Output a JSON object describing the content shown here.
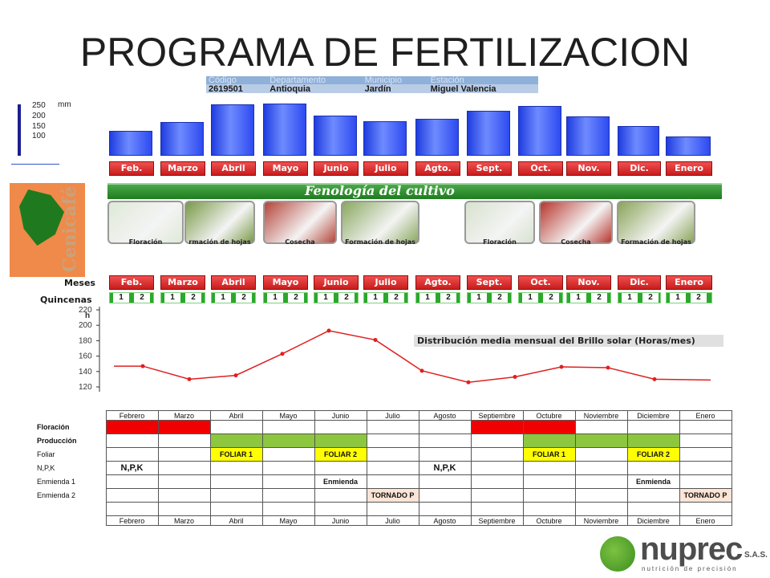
{
  "title": "PROGRAMA DE FERTILIZACION",
  "station": {
    "headers": [
      "Código",
      "Departamento",
      "Municipio",
      "Estación"
    ],
    "values": [
      "2619501",
      "Antioquia",
      "Jardín",
      "Miguel Valencia"
    ]
  },
  "rain_axis": {
    "unit": "mm",
    "ticks": [
      "250",
      "200",
      "150",
      "100"
    ]
  },
  "months_short": [
    "Feb.",
    "Marzo",
    "Abril",
    "Mayo",
    "Junio",
    "Julio",
    "Agto.",
    "Sept.",
    "Oct.",
    "Nov.",
    "Dic.",
    "Enero"
  ],
  "rainfall_mm": [
    112,
    150,
    228,
    232,
    180,
    155,
    166,
    200,
    220,
    175,
    132,
    86
  ],
  "fenologia": {
    "title": "Fenología del cultivo",
    "photos_labels": [
      "Floración",
      "rmación de hojas",
      "Cosecha",
      "Formación de hojas",
      "Floración",
      "Cosecha",
      "Formación de hojas"
    ],
    "side_word": "Cenicafé"
  },
  "meses_label": "Meses",
  "quincenas_label": "Quincenas",
  "quincena_numbers": [
    "1",
    "2"
  ],
  "sunshine": {
    "unit": "h",
    "legend": "Distribución media mensual del Brillo solar (Horas/mes)",
    "ticks": [
      "220",
      "200",
      "180",
      "160",
      "140",
      "120"
    ],
    "values": [
      147,
      130,
      135,
      163,
      193,
      181,
      141,
      126,
      133,
      146,
      145,
      130
    ]
  },
  "program": {
    "months": [
      "Febrero",
      "Marzo",
      "Abril",
      "Mayo",
      "Junio",
      "Julio",
      "Agosto",
      "Septiembre",
      "Octubre",
      "Noviembre",
      "Diciembre",
      "Enero"
    ],
    "rows": [
      {
        "label": "Floración",
        "bold": true,
        "cells": [
          "red",
          "red",
          "",
          "",
          "",
          "",
          "",
          "red",
          "red",
          "",
          "",
          ""
        ],
        "texts": [
          "",
          "",
          "",
          "",
          "",
          "",
          "",
          "",
          "",
          "",
          "",
          ""
        ]
      },
      {
        "label": "Producción",
        "bold": true,
        "cells": [
          "",
          "",
          "green",
          "green",
          "green",
          "",
          "",
          "",
          "green",
          "green",
          "green",
          ""
        ],
        "texts": [
          "",
          "",
          "",
          "",
          "",
          "",
          "",
          "",
          "",
          "",
          "",
          ""
        ]
      },
      {
        "label": "Foliar",
        "bold": false,
        "cells": [
          "",
          "",
          "yellow",
          "",
          "yellow",
          "",
          "",
          "",
          "yellow",
          "",
          "yellow",
          ""
        ],
        "texts": [
          "",
          "",
          "FOLIAR 1",
          "",
          "FOLIAR 2",
          "",
          "",
          "",
          "FOLIAR 1",
          "",
          "FOLIAR 2",
          ""
        ]
      },
      {
        "label": "N,P,K",
        "bold": false,
        "cells": [
          "npk",
          "",
          "",
          "",
          "",
          "",
          "npk",
          "",
          "",
          "",
          "",
          ""
        ],
        "texts": [
          "N,P,K",
          "",
          "",
          "",
          "",
          "",
          "N,P,K",
          "",
          "",
          "",
          "",
          ""
        ]
      },
      {
        "label": "Enmienda 1",
        "bold": false,
        "cells": [
          "",
          "",
          "",
          "",
          "bold",
          "",
          "",
          "",
          "",
          "",
          "bold",
          ""
        ],
        "texts": [
          "",
          "",
          "",
          "",
          "Enmienda",
          "",
          "",
          "",
          "",
          "",
          "Enmienda",
          ""
        ]
      },
      {
        "label": "Enmienda 2",
        "bold": false,
        "cells": [
          "",
          "",
          "",
          "",
          "",
          "peach",
          "",
          "",
          "",
          "",
          "",
          "peach"
        ],
        "texts": [
          "",
          "",
          "",
          "",
          "",
          "TORNADO P",
          "",
          "",
          "",
          "",
          "",
          "TORNADO P"
        ]
      },
      {
        "label": "",
        "bold": false,
        "cells": [
          "",
          "",
          "",
          "",
          "",
          "",
          "",
          "",
          "",
          "",
          "",
          ""
        ],
        "texts": [
          "",
          "",
          "",
          "",
          "",
          "",
          "",
          "",
          "",
          "",
          "",
          ""
        ]
      }
    ]
  },
  "logo": {
    "name": "nuprec",
    "suffix": "S.A.S.",
    "tagline": "nutrición de precisión"
  }
}
